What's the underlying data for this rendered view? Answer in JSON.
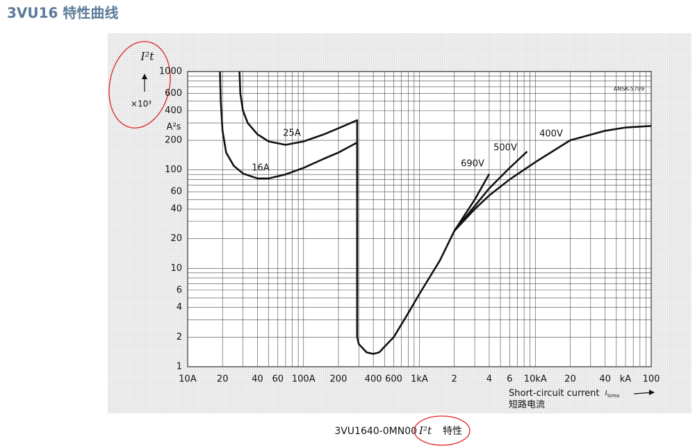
{
  "header": {
    "title": "3VU16 特性曲线"
  },
  "caption": {
    "code": "3VU1640-0MN00",
    "symbol": "I²t",
    "text": "特性"
  },
  "chart_data": {
    "type": "line",
    "xscale": "log",
    "yscale": "log",
    "xlim": [
      10,
      100000
    ],
    "ylim": [
      1,
      1000
    ],
    "xticks": [
      {
        "value": 10,
        "label": "10A"
      },
      20,
      40,
      60,
      {
        "value": 100,
        "label": "100A"
      },
      200,
      400,
      600,
      {
        "value": 1000,
        "label": "1kA"
      },
      {
        "value": 2000,
        "label": "2"
      },
      {
        "value": 4000,
        "label": "4"
      },
      {
        "value": 6000,
        "label": "6"
      },
      {
        "value": 10000,
        "label": "10kA"
      },
      {
        "value": 20000,
        "label": "20"
      },
      {
        "value": 40000,
        "label": "40"
      },
      {
        "value": 60000,
        "label": "kA"
      },
      {
        "value": 100000,
        "label": "100"
      }
    ],
    "yticks": [
      1,
      2,
      4,
      6,
      10,
      20,
      40,
      60,
      100,
      200,
      400,
      600,
      1000
    ],
    "x_minor_grid": [
      30,
      50,
      70,
      80,
      90,
      300,
      500,
      700,
      800,
      900,
      3000,
      5000,
      7000,
      8000,
      9000,
      30000,
      50000,
      70000,
      80000,
      90000
    ],
    "y_minor_grid": [
      3,
      5,
      7,
      8,
      9,
      30,
      50,
      70,
      80,
      90,
      300,
      500,
      700,
      800,
      900
    ],
    "grid": true,
    "y_label": "I²t",
    "y_multiplier": "×10³",
    "y_unit": "A²s",
    "x_label": "Short-circuit current",
    "x_label_symbol": "I",
    "x_label_subscript": "Srms",
    "x_label_cn": "短路电流",
    "annotation": "ANSK-5799",
    "series": [
      {
        "name": "16A",
        "color": "#111111",
        "x": [
          19,
          19.3,
          20,
          21.5,
          25,
          30,
          40,
          50,
          70,
          100,
          150,
          200,
          290,
          290
        ],
        "values": [
          1000,
          500,
          250,
          150,
          110,
          92,
          82,
          82,
          90,
          105,
          130,
          150,
          190,
          2
        ]
      },
      {
        "name": "25A",
        "color": "#111111",
        "x": [
          28,
          28.5,
          30,
          33,
          40,
          50,
          70,
          100,
          150,
          200,
          290,
          290
        ],
        "values": [
          1000,
          600,
          400,
          300,
          230,
          195,
          180,
          195,
          230,
          265,
          320,
          2
        ]
      },
      {
        "name": "690V",
        "color": "#111111",
        "x": [
          2000,
          3000,
          4000
        ],
        "values": [
          24,
          50,
          91
        ]
      },
      {
        "name": "500V",
        "color": "#111111",
        "x": [
          2000,
          4000,
          6000,
          8500
        ],
        "values": [
          24,
          65,
          105,
          154
        ]
      },
      {
        "name": "400V",
        "color": "#111111",
        "x": [
          290,
          300,
          350,
          400,
          450,
          500,
          600,
          800,
          1000,
          1500,
          2000,
          3000,
          4000,
          6000,
          10000,
          20000,
          40000,
          60000,
          100000
        ],
        "values": [
          2,
          1.7,
          1.4,
          1.35,
          1.4,
          1.6,
          2,
          3.5,
          5.5,
          12,
          24,
          40,
          55,
          80,
          120,
          200,
          250,
          270,
          280
        ]
      }
    ]
  }
}
